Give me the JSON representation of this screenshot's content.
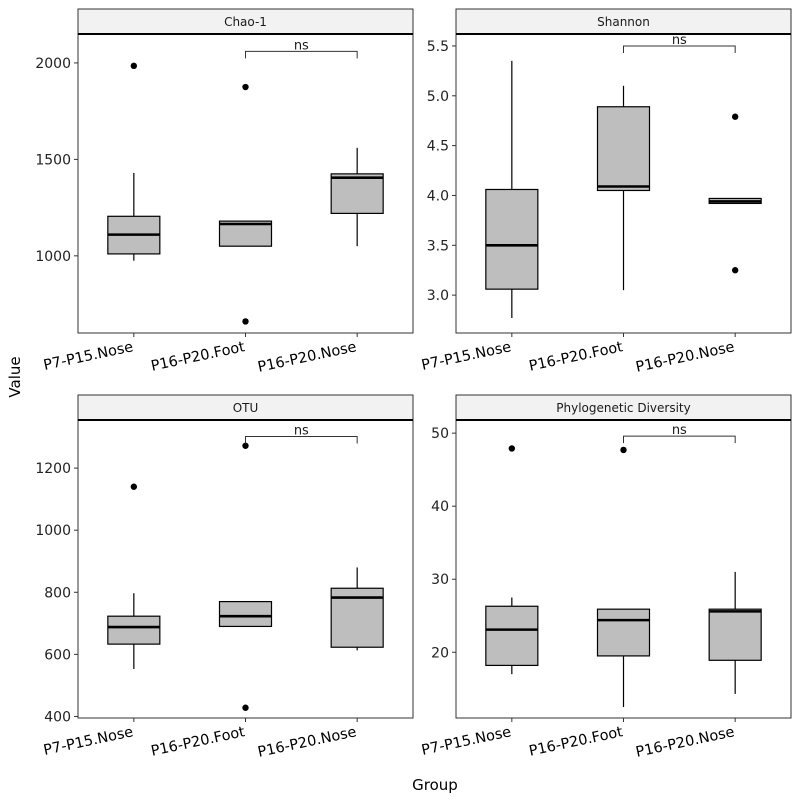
{
  "axis_titles": {
    "x": "Group",
    "y": "Value"
  },
  "groups": [
    "P7-P15.Nose",
    "P16-P20.Foot",
    "P16-P20.Nose"
  ],
  "colors": {
    "box_fill": "#bebebe",
    "strip_fill": "#f2f2f2",
    "line": "#000000"
  },
  "chart_data": [
    {
      "type": "box",
      "title": "Chao-1",
      "categories": [
        "P7-P15.Nose",
        "P16-P20.Foot",
        "P16-P20.Nose"
      ],
      "yticks": [
        1000,
        1500,
        2000
      ],
      "ylim": [
        600,
        2150
      ],
      "boxes": [
        {
          "whisker_low": 975,
          "q1": 1010,
          "median": 1110,
          "q3": 1205,
          "whisker_high": 1430,
          "outliers": [
            1985
          ]
        },
        {
          "whisker_low": 1050,
          "q1": 1050,
          "median": 1165,
          "q3": 1180,
          "whisker_high": 1180,
          "outliers": [
            1875,
            660
          ]
        },
        {
          "whisker_low": 1050,
          "q1": 1220,
          "median": 1405,
          "q3": 1425,
          "whisker_high": 1560,
          "outliers": []
        }
      ],
      "comparison": {
        "from": 1,
        "to": 2,
        "label": "ns",
        "y": 2060
      }
    },
    {
      "type": "box",
      "title": "Shannon",
      "categories": [
        "P7-P15.Nose",
        "P16-P20.Foot",
        "P16-P20.Nose"
      ],
      "yticks": [
        3.0,
        3.5,
        4.0,
        4.5,
        5.0,
        5.5
      ],
      "ylim": [
        2.62,
        5.62
      ],
      "boxes": [
        {
          "whisker_low": 2.77,
          "q1": 3.06,
          "median": 3.5,
          "q3": 4.06,
          "whisker_high": 5.35,
          "outliers": []
        },
        {
          "whisker_low": 3.05,
          "q1": 4.05,
          "median": 4.09,
          "q3": 4.89,
          "whisker_high": 5.1,
          "outliers": []
        },
        {
          "whisker_low": 3.92,
          "q1": 3.92,
          "median": 3.94,
          "q3": 3.97,
          "whisker_high": 3.97,
          "outliers": [
            4.79,
            3.25
          ]
        }
      ],
      "comparison": {
        "from": 1,
        "to": 2,
        "label": "ns",
        "y": 5.5
      }
    },
    {
      "type": "box",
      "title": "OTU",
      "categories": [
        "P7-P15.Nose",
        "P16-P20.Foot",
        "P16-P20.Nose"
      ],
      "yticks": [
        400,
        600,
        800,
        1000,
        1200
      ],
      "ylim": [
        395,
        1355
      ],
      "boxes": [
        {
          "whisker_low": 553,
          "q1": 633,
          "median": 688,
          "q3": 723,
          "whisker_high": 797,
          "outliers": [
            1140
          ]
        },
        {
          "whisker_low": 690,
          "q1": 690,
          "median": 723,
          "q3": 770,
          "whisker_high": 770,
          "outliers": [
            1272,
            428
          ]
        },
        {
          "whisker_low": 613,
          "q1": 623,
          "median": 783,
          "q3": 813,
          "whisker_high": 880,
          "outliers": []
        }
      ],
      "comparison": {
        "from": 1,
        "to": 2,
        "label": "ns",
        "y": 1302
      }
    },
    {
      "type": "box",
      "title": "Phylogenetic Diversity",
      "categories": [
        "P7-P15.Nose",
        "P16-P20.Foot",
        "P16-P20.Nose"
      ],
      "yticks": [
        20,
        30,
        40,
        50
      ],
      "ylim": [
        11,
        51.8
      ],
      "boxes": [
        {
          "whisker_low": 17.0,
          "q1": 18.2,
          "median": 23.1,
          "q3": 26.3,
          "whisker_high": 27.5,
          "outliers": [
            47.9
          ]
        },
        {
          "whisker_low": 12.5,
          "q1": 19.5,
          "median": 24.4,
          "q3": 25.9,
          "whisker_high": 25.9,
          "outliers": [
            47.7
          ]
        },
        {
          "whisker_low": 14.3,
          "q1": 18.9,
          "median": 25.6,
          "q3": 25.9,
          "whisker_high": 31.0,
          "outliers": []
        }
      ],
      "comparison": {
        "from": 1,
        "to": 2,
        "label": "ns",
        "y": 49.6
      }
    }
  ]
}
